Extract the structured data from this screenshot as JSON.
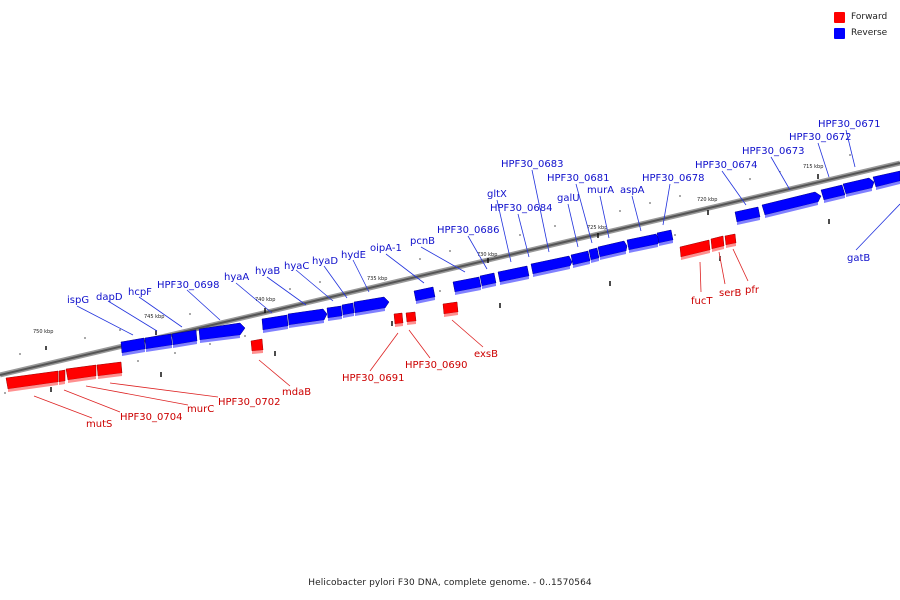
{
  "legend": {
    "forward": "Forward",
    "reverse": "Reverse"
  },
  "colors": {
    "forward": "#ff0000",
    "reverse": "#0000ff",
    "forward_label": "#cc0000",
    "reverse_label": "#1010cc"
  },
  "caption": "Helicobacter pylori F30 DNA, complete genome. - 0..1570564",
  "scale_marks": [
    "750 kbp",
    "745 kbp",
    "740 kbp",
    "735 kbp",
    "730 kbp",
    "725 kbp",
    "720 kbp",
    "715 kbp"
  ],
  "genes_reverse": [
    "ispG",
    "dapD",
    "hcpF",
    "HPF30_0698",
    "hyaA",
    "hyaB",
    "hyaC",
    "hyaD",
    "hydE",
    "oipA-1",
    "pcnB",
    "HPF30_0686",
    "gltX",
    "HPF30_0684",
    "HPF30_0683",
    "galU",
    "HPF30_0681",
    "murA",
    "aspA",
    "HPF30_0678",
    "HPF30_0674",
    "HPF30_0673",
    "HPF30_0672",
    "HPF30_0671",
    "gatB"
  ],
  "genes_forward": [
    "mutS",
    "HPF30_0704",
    "murC",
    "HPF30_0702",
    "mdaB",
    "HPF30_0691",
    "HPF30_0690",
    "exsB",
    "fucT",
    "serB",
    "pfr"
  ]
}
